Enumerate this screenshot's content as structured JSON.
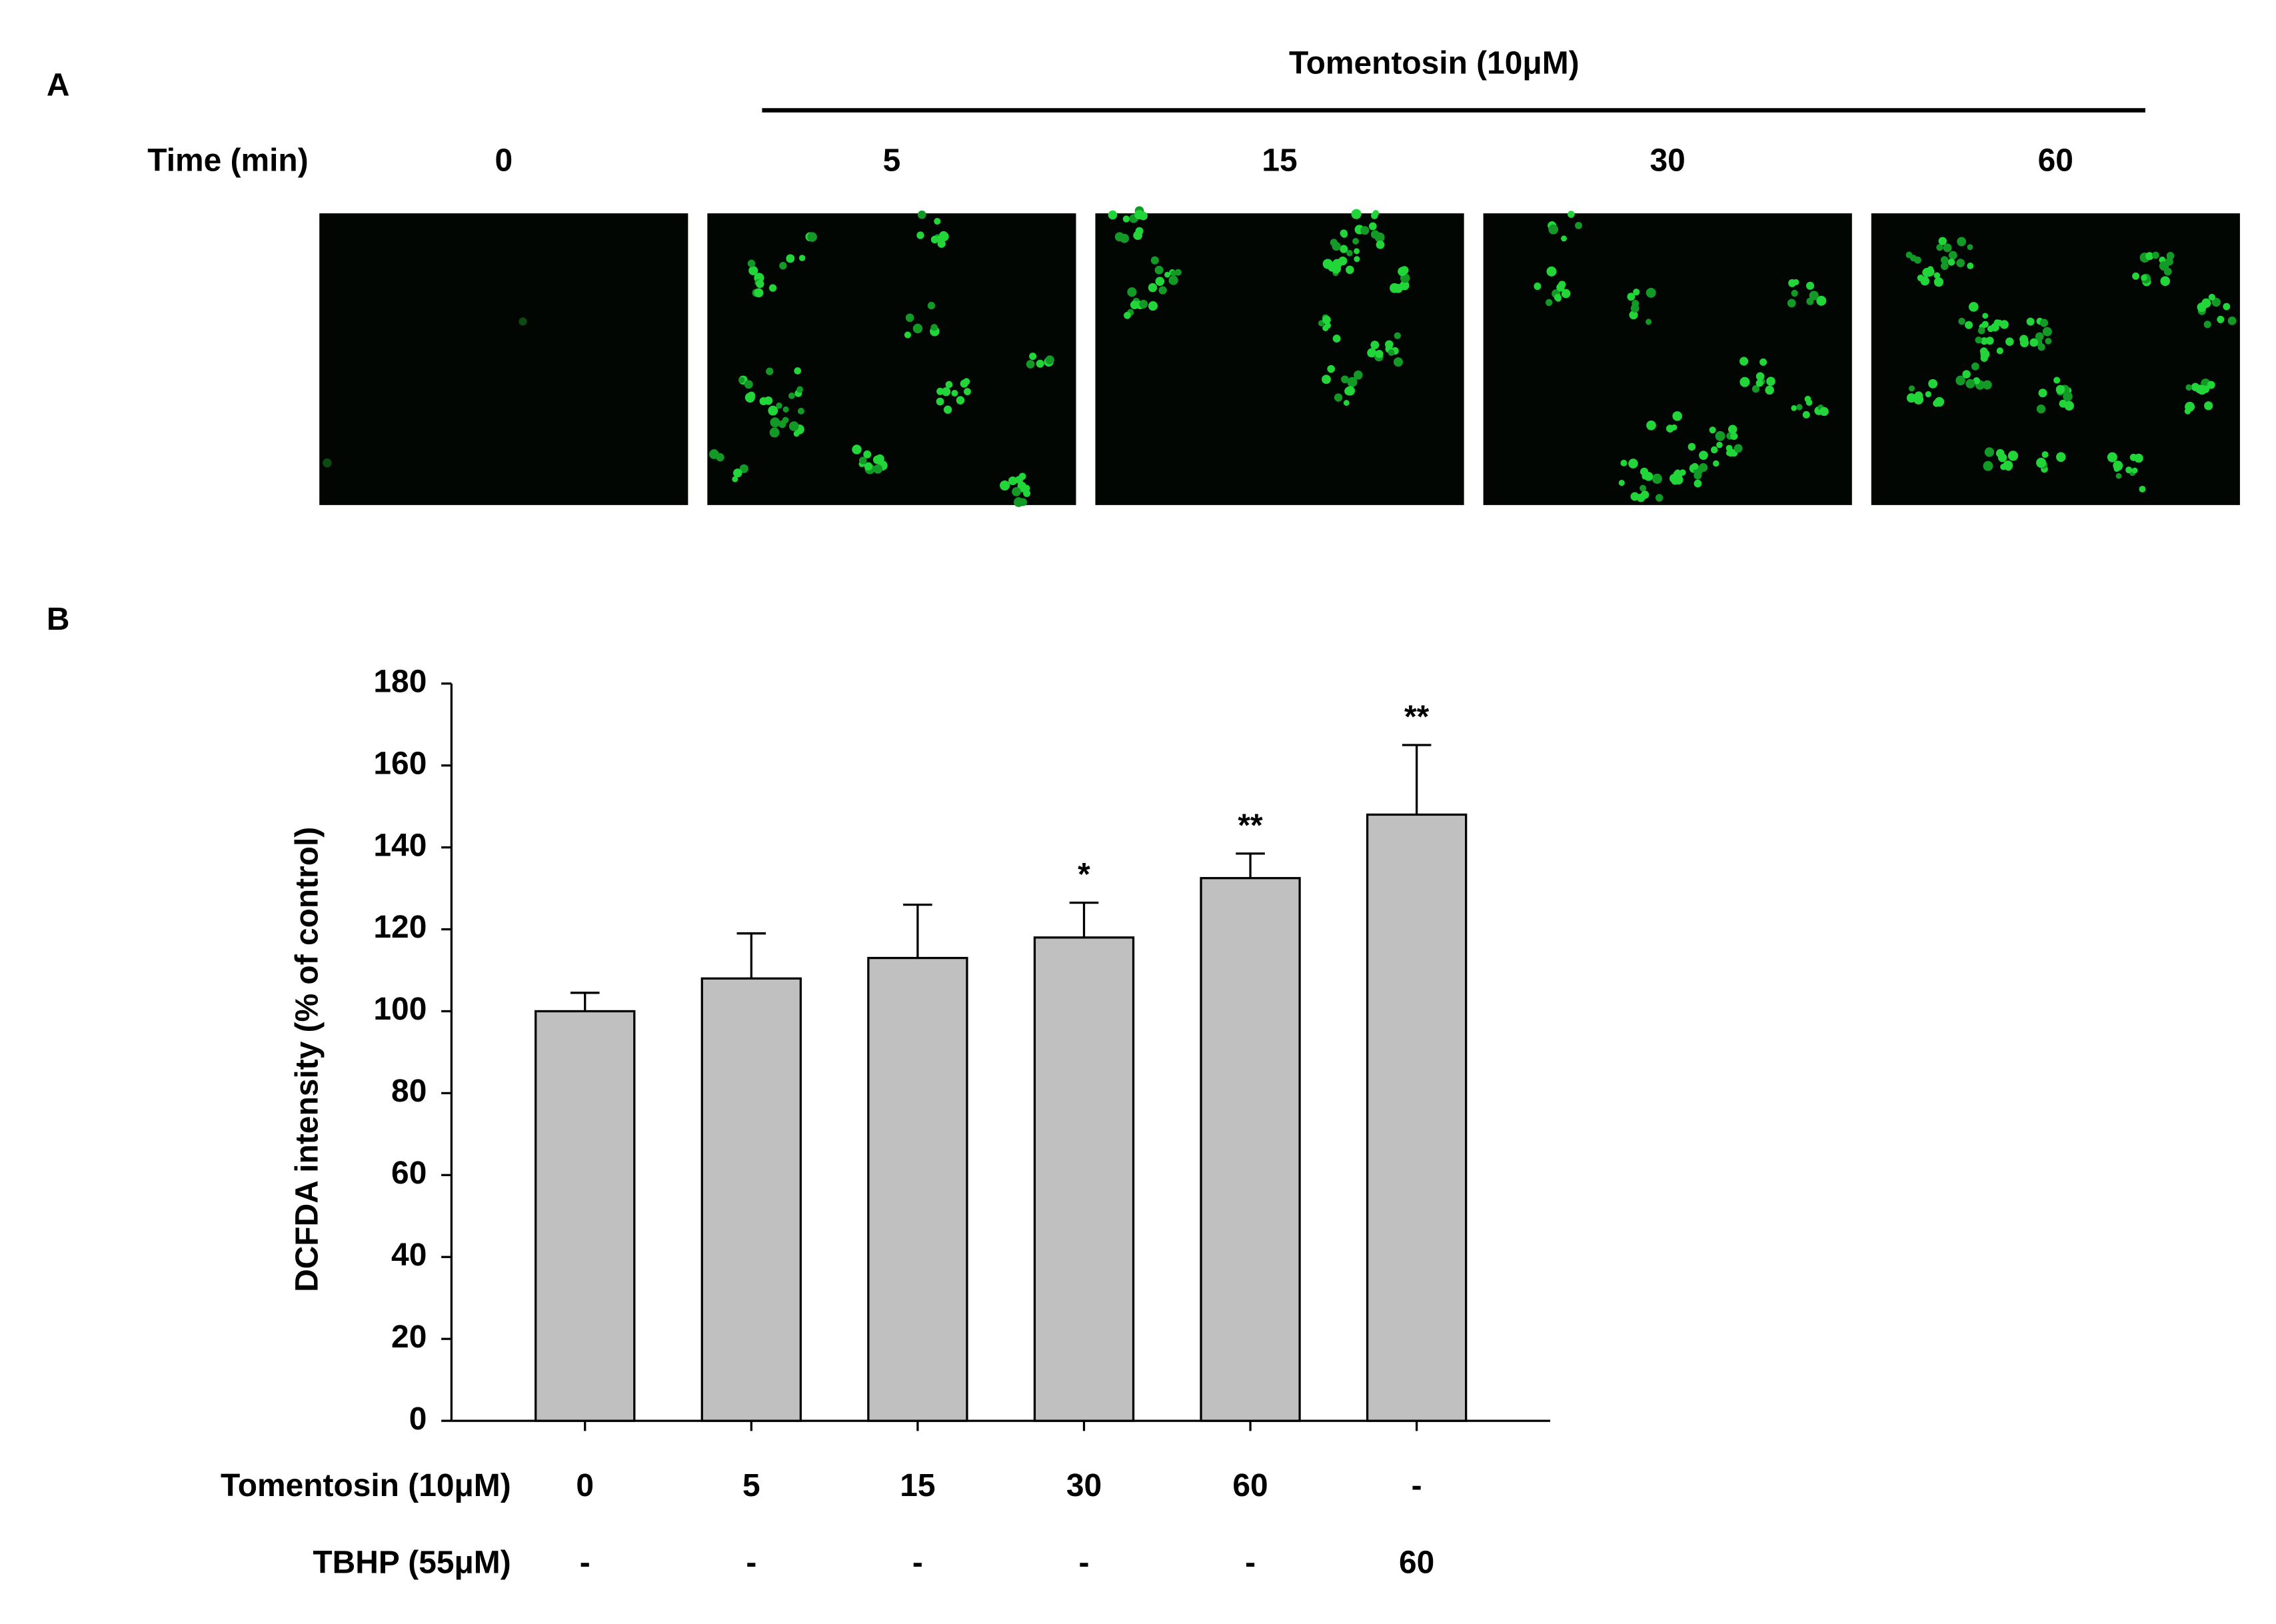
{
  "panel_a": {
    "label": "A",
    "header": "Tomentosin (10μM)",
    "time_label": "Time (min)",
    "times": [
      "0",
      "5",
      "15",
      "30",
      "60"
    ]
  },
  "chart_data": {
    "type": "bar",
    "panel_label": "B",
    "y_label": "DCFDA intensity (% of control)",
    "categories": [
      "0",
      "5",
      "15",
      "30",
      "60",
      "-"
    ],
    "row_label": "Tomentosin (10μM)",
    "second_row": {
      "label": "TBHP (55μM)",
      "categories": [
        "-",
        "-",
        "-",
        "-",
        "-",
        "60"
      ]
    },
    "values": [
      100,
      108,
      113,
      118,
      132.5,
      148
    ],
    "errors": [
      4.5,
      11,
      13,
      8.5,
      6,
      17
    ],
    "annotations": [
      null,
      null,
      null,
      "*",
      "**",
      "**"
    ],
    "color": "#c0c0c0",
    "ylim": [
      0,
      180
    ],
    "yticks": [
      0,
      20,
      40,
      60,
      80,
      100,
      120,
      140,
      160,
      180
    ]
  }
}
